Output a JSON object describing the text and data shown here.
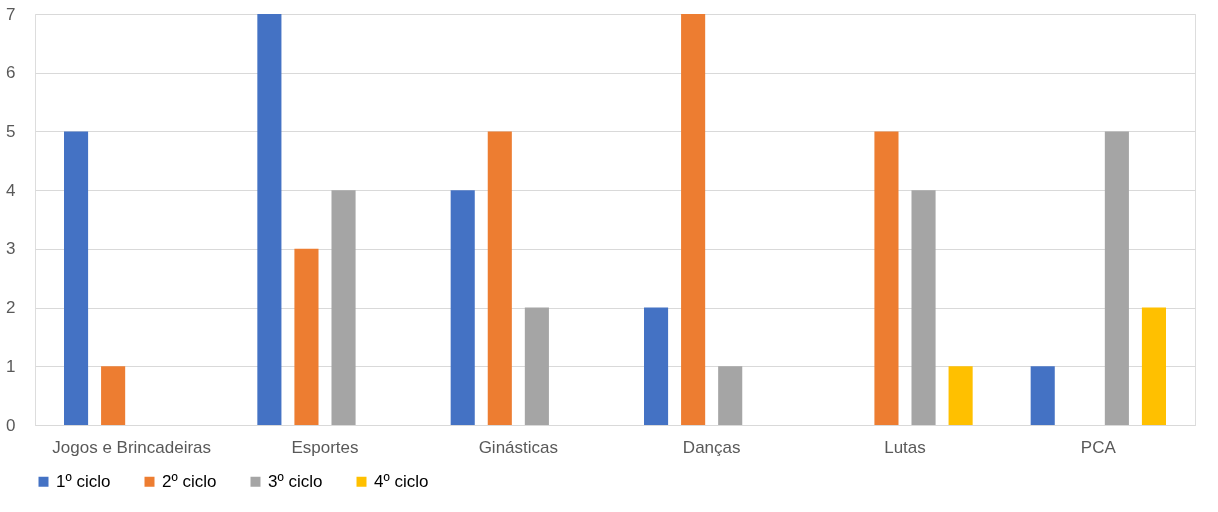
{
  "chart_data": {
    "type": "bar",
    "categories": [
      "Jogos e Brincadeiras",
      "Esportes",
      "Ginásticas",
      "Danças",
      "Lutas",
      "PCA"
    ],
    "series": [
      {
        "name": "1º ciclo",
        "color": "#4472c4",
        "values": [
          5,
          7,
          4,
          2,
          null,
          1
        ]
      },
      {
        "name": "2º ciclo",
        "color": "#ed7d31",
        "values": [
          1,
          3,
          5,
          7,
          5,
          null
        ]
      },
      {
        "name": "3º ciclo",
        "color": "#a5a5a5",
        "values": [
          null,
          4,
          2,
          1,
          4,
          5
        ]
      },
      {
        "name": "4º ciclo",
        "color": "#ffc000",
        "values": [
          null,
          null,
          null,
          null,
          1,
          2
        ]
      }
    ],
    "ylim": [
      0,
      7
    ],
    "yticks": [
      0,
      1,
      2,
      3,
      4,
      5,
      6,
      7
    ],
    "grid": "y",
    "legend": "bottom"
  }
}
